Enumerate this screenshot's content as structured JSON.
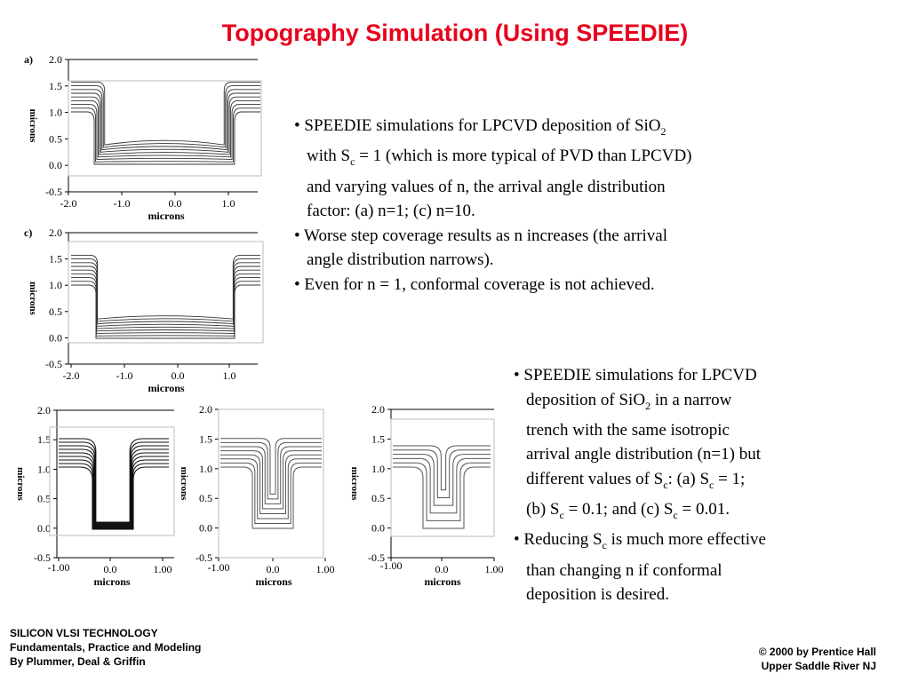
{
  "title": "Topography Simulation (Using SPEEDIE)",
  "plots": {
    "a": {
      "label": "a)",
      "yticks": [
        "2.0",
        "1.5",
        "1.0",
        "0.5",
        "0.0",
        "-0.5"
      ],
      "xticks": [
        "-2.0",
        "-1.0",
        "0.0",
        "1.0"
      ],
      "xlabel": "microns",
      "ylabel": "microns"
    },
    "c": {
      "label": "c)",
      "yticks": [
        "2.0",
        "1.5",
        "1.0",
        "0.5",
        "0.0",
        "-0.5"
      ],
      "xticks": [
        "-2.0",
        "-1.0",
        "0.0",
        "1.0"
      ],
      "xlabel": "microns",
      "ylabel": "microns"
    },
    "t1": {
      "yticks": [
        "2.0",
        "1.5",
        "1.0",
        "0.5",
        "0.0",
        "-0.5"
      ],
      "xticks": [
        "-1.00",
        "0.0",
        "1.00"
      ],
      "xlabel": "microns",
      "ylabel": "microns"
    },
    "t2": {
      "yticks": [
        "2.0",
        "1.5",
        "1.0",
        "0.5",
        "0.0",
        "-0.5"
      ],
      "xticks": [
        "-1.00",
        "0.0",
        "1.00"
      ],
      "xlabel": "microns",
      "ylabel": "microns"
    },
    "t3": {
      "yticks": [
        "2.0",
        "1.5",
        "1.0",
        "0.5",
        "0.0",
        "-0.5"
      ],
      "xticks": [
        "-1.00",
        "0.0",
        "1.00"
      ],
      "xlabel": "microns",
      "ylabel": "microns"
    }
  },
  "bullets_top": [
    [
      "• SPEEDIE simulations for LPCVD deposition of SiO",
      "2"
    ],
    [
      "with S",
      "c",
      " = 1 (which is more typical of PVD than LPCVD)"
    ],
    [
      "and varying values of n, the arrival angle distribution"
    ],
    [
      "factor: (a) n=1;  (c) n=10."
    ],
    [
      "• Worse step coverage results as n increases (the arrival"
    ],
    [
      "angle distribution narrows)."
    ],
    [
      "• Even for n = 1, conformal coverage is not achieved."
    ]
  ],
  "bullets_bottom": [
    [
      "• SPEEDIE simulations for LPCVD"
    ],
    [
      "deposition of SiO",
      "2",
      " in a narrow"
    ],
    [
      "trench with the same isotropic"
    ],
    [
      "arrival angle distribution (n=1) but"
    ],
    [
      "different values of S",
      "c",
      ":  (a) S",
      "c",
      " = 1;"
    ],
    [
      "(b) S",
      "c",
      " = 0.1; and (c) S",
      "c",
      " = 0.01."
    ],
    [
      "• Reducing S",
      "c",
      " is much more effective"
    ],
    [
      "than changing n if conformal"
    ],
    [
      "deposition is desired."
    ]
  ],
  "footer_left": [
    "SILICON VLSI TECHNOLOGY",
    "Fundamentals, Practice and Modeling",
    "By Plummer, Deal & Griffin"
  ],
  "footer_right": [
    "© 2000 by Prentice Hall",
    "Upper Saddle River NJ"
  ]
}
